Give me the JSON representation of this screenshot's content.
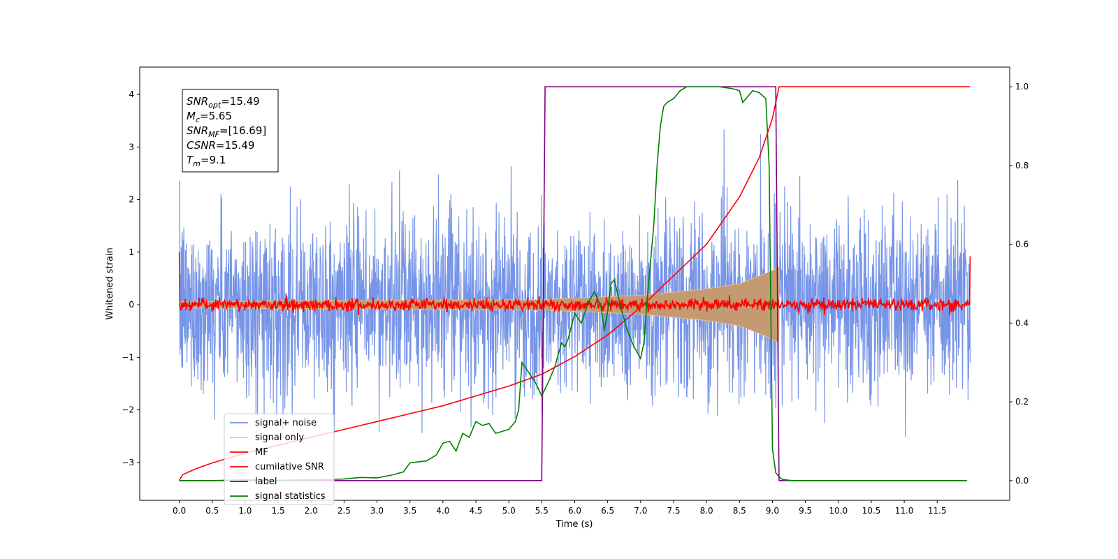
{
  "chart_data": {
    "type": "line",
    "xlabel": "Time (s)",
    "ylabel": "Whitened strain",
    "xlim": [
      -0.6,
      12.6
    ],
    "ylim": [
      -3.72,
      4.52
    ],
    "y2lim": [
      -0.05,
      1.05
    ],
    "xticks": [
      0.0,
      0.5,
      1.0,
      1.5,
      2.0,
      2.5,
      3.0,
      3.5,
      4.0,
      4.5,
      5.0,
      5.5,
      6.0,
      6.5,
      7.0,
      7.5,
      8.0,
      8.5,
      9.0,
      9.5,
      10.0,
      10.5,
      11.0,
      11.5
    ],
    "xtick_labels": [
      "0.0",
      "0.5",
      "1.0",
      "1.5",
      "2.0",
      "2.5",
      "3.0",
      "3.5",
      "4.0",
      "4.5",
      "5.0",
      "5.5",
      "6.0",
      "6.5",
      "7.0",
      "7.5",
      "8.0",
      "8.5",
      "9.0",
      "9.5",
      "10.0",
      "10.5",
      "11.0",
      "11.5"
    ],
    "yticks": [
      -3,
      -2,
      -1,
      0,
      1,
      2,
      3,
      4
    ],
    "ytick_labels": [
      "−3",
      "−2",
      "−1",
      "0",
      "1",
      "2",
      "3",
      "4"
    ],
    "y2ticks": [
      0.0,
      0.2,
      0.4,
      0.6,
      0.8,
      1.0
    ],
    "y2tick_labels": [
      "0.0",
      "0.2",
      "0.4",
      "0.6",
      "0.8",
      "1.0"
    ],
    "grid": false,
    "legend_position": "lower-left",
    "annotation": {
      "lines": [
        {
          "var": "SNR",
          "sub": "opt",
          "value": "=15.49"
        },
        {
          "var": "M",
          "sub": "c",
          "value": "=5.65"
        },
        {
          "var": "SNR",
          "sub": "MF",
          "value": "=[16.69]"
        },
        {
          "var": "CSNR",
          "sub": "",
          "value": "=15.49"
        },
        {
          "var": "T",
          "sub": "m",
          "value": "=9.1"
        }
      ]
    },
    "series": [
      {
        "name": "signal+ noise",
        "color": "#7795e8",
        "axis": "left",
        "kind": "noise",
        "x_range": [
          0,
          12
        ],
        "amplitude_sd": 0.85
      },
      {
        "name": "signal only",
        "color": "#f5c77e",
        "fill_color": "#c49a73",
        "axis": "left",
        "kind": "chirp",
        "x_range": [
          0.0,
          9.1
        ],
        "envelope": [
          [
            0.0,
            0.06
          ],
          [
            5.5,
            0.1
          ],
          [
            7.0,
            0.18
          ],
          [
            8.0,
            0.3
          ],
          [
            8.5,
            0.4
          ],
          [
            9.0,
            0.65
          ],
          [
            9.08,
            0.72
          ]
        ]
      },
      {
        "name": "MF",
        "color": "#ff0000",
        "axis": "left",
        "kind": "flat-noise",
        "x_range": [
          0,
          12
        ],
        "start_value": 1.0,
        "end_value": 0.92
      },
      {
        "name": "cumilative SNR",
        "color": "#ff0000",
        "axis": "right",
        "x": [
          0.0,
          0.05,
          0.25,
          0.5,
          1.0,
          1.5,
          2.0,
          2.5,
          3.0,
          3.5,
          4.0,
          4.5,
          5.0,
          5.5,
          6.0,
          6.5,
          7.0,
          7.5,
          8.0,
          8.5,
          8.8,
          9.0,
          9.1,
          12.0
        ],
        "y": [
          0.0,
          0.015,
          0.03,
          0.045,
          0.07,
          0.09,
          0.11,
          0.13,
          0.15,
          0.17,
          0.19,
          0.215,
          0.24,
          0.27,
          0.315,
          0.37,
          0.44,
          0.52,
          0.6,
          0.72,
          0.82,
          0.92,
          1.0,
          1.0
        ]
      },
      {
        "name": "label",
        "color": "#800080",
        "axis": "right",
        "x": [
          0.0,
          5.5,
          5.55,
          9.05,
          9.1,
          11.95
        ],
        "y": [
          0.0,
          0.0,
          1.0,
          1.0,
          0.0,
          0.0
        ]
      },
      {
        "name": "signal statistics",
        "color": "#008000",
        "axis": "right",
        "x": [
          0.0,
          0.5,
          1.0,
          1.5,
          2.0,
          2.5,
          2.75,
          3.0,
          3.25,
          3.4,
          3.5,
          3.75,
          3.9,
          4.0,
          4.1,
          4.2,
          4.3,
          4.4,
          4.5,
          4.6,
          4.7,
          4.8,
          4.9,
          5.0,
          5.1,
          5.15,
          5.2,
          5.3,
          5.4,
          5.5,
          5.6,
          5.7,
          5.8,
          5.85,
          5.9,
          6.0,
          6.1,
          6.2,
          6.3,
          6.4,
          6.45,
          6.5,
          6.55,
          6.6,
          6.7,
          6.8,
          6.9,
          7.0,
          7.05,
          7.1,
          7.2,
          7.25,
          7.3,
          7.35,
          7.4,
          7.5,
          7.6,
          7.7,
          7.8,
          8.0,
          8.2,
          8.4,
          8.5,
          8.55,
          8.6,
          8.7,
          8.8,
          8.9,
          8.95,
          9.0,
          9.05,
          9.1,
          9.15,
          9.3,
          9.5,
          10.0,
          10.5,
          11.0,
          11.5,
          11.95
        ],
        "y": [
          0.0,
          0.0,
          0.002,
          0.001,
          0.002,
          0.004,
          0.008,
          0.007,
          0.015,
          0.022,
          0.045,
          0.05,
          0.065,
          0.095,
          0.1,
          0.075,
          0.12,
          0.11,
          0.15,
          0.14,
          0.145,
          0.12,
          0.125,
          0.13,
          0.15,
          0.18,
          0.3,
          0.275,
          0.25,
          0.215,
          0.25,
          0.29,
          0.35,
          0.34,
          0.36,
          0.425,
          0.4,
          0.45,
          0.48,
          0.44,
          0.38,
          0.43,
          0.5,
          0.51,
          0.44,
          0.38,
          0.34,
          0.31,
          0.35,
          0.46,
          0.65,
          0.8,
          0.9,
          0.95,
          0.96,
          0.97,
          0.99,
          1.0,
          1.0,
          1.0,
          1.0,
          0.995,
          0.99,
          0.96,
          0.97,
          0.99,
          0.985,
          0.97,
          0.8,
          0.08,
          0.02,
          0.01,
          0.003,
          0.0,
          0.0,
          0.0,
          0.0,
          0.0,
          0.0,
          0.0
        ]
      }
    ]
  }
}
